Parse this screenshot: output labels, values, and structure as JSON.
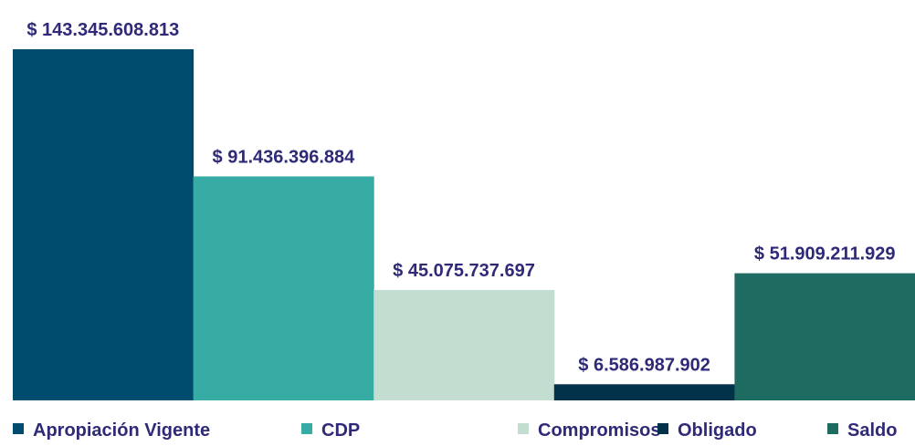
{
  "chart_data": {
    "type": "bar",
    "title": "",
    "xlabel": "",
    "ylabel": "",
    "ylim": [
      0,
      143345608813
    ],
    "grid": false,
    "legend_placement": "bottom",
    "categories": [
      "Apropiación Vigente",
      "CDP",
      "Compromisos",
      "Obligado",
      "Saldo"
    ],
    "values": [
      143345608813,
      91436396884,
      45075737697,
      6586987902,
      51909211929
    ],
    "data_labels": [
      "$ 143.345.608.813",
      "$ 91.436.396.884",
      "$ 45.075.737.697",
      "$ 6.586.987.902",
      "$ 51.909.211.929"
    ],
    "colors": [
      "#004C6E",
      "#36ACA4",
      "#C3DDD0",
      "#02314A",
      "#1E6B61"
    ],
    "label_color": "#2E2A77"
  }
}
